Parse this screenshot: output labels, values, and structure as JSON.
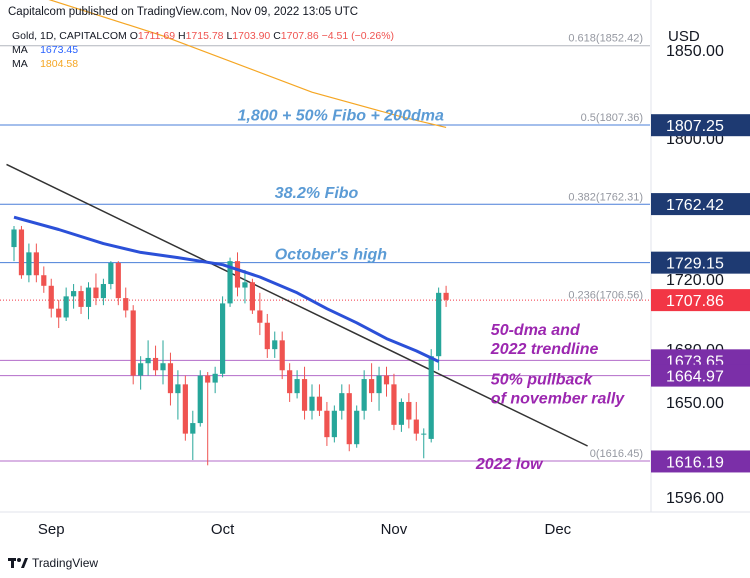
{
  "header": {
    "published": "Capitalcom published on TradingView.com, Nov 09, 2022 13:05 UTC"
  },
  "symbol": {
    "name": "Gold, 1D, CAPITALCOM",
    "o_label": "O",
    "o": "1711.69",
    "h_label": "H",
    "h": "1715.78",
    "l_label": "L",
    "l": "1703.90",
    "c_label": "C",
    "c": "1707.86",
    "change": "−4.51 (−0.26%)"
  },
  "indicators": [
    {
      "label": "MA",
      "value": "1673.45",
      "color": "#2962ff"
    },
    {
      "label": "MA",
      "value": "1804.58",
      "color": "#f5a623"
    }
  ],
  "currency": "USD",
  "footer": {
    "brand": "TradingView"
  },
  "chart_data": {
    "type": "candlestick",
    "y_ticks": [
      "1850.00",
      "1800.00",
      "1720.00",
      "1680.00",
      "1650.00",
      "1596.00"
    ],
    "x_ticks": [
      {
        "label": "Sep",
        "index": 5
      },
      {
        "label": "Oct",
        "index": 28
      },
      {
        "label": "Nov",
        "index": 51
      },
      {
        "label": "Dec",
        "index": 73
      }
    ],
    "ohlc": [
      [
        1738,
        1750,
        1730,
        1748
      ],
      [
        1748,
        1750,
        1720,
        1722
      ],
      [
        1722,
        1740,
        1718,
        1735
      ],
      [
        1735,
        1740,
        1718,
        1722
      ],
      [
        1722,
        1727,
        1712,
        1716
      ],
      [
        1716,
        1720,
        1698,
        1703
      ],
      [
        1703,
        1708,
        1692,
        1698
      ],
      [
        1698,
        1715,
        1696,
        1710
      ],
      [
        1710,
        1717,
        1703,
        1713
      ],
      [
        1713,
        1716,
        1700,
        1704
      ],
      [
        1704,
        1718,
        1697,
        1715
      ],
      [
        1715,
        1723,
        1705,
        1709
      ],
      [
        1709,
        1720,
        1705,
        1717
      ],
      [
        1717,
        1730,
        1714,
        1729
      ],
      [
        1729,
        1730,
        1705,
        1709
      ],
      [
        1709,
        1715,
        1698,
        1702
      ],
      [
        1702,
        1705,
        1660,
        1665
      ],
      [
        1665,
        1676,
        1657,
        1672
      ],
      [
        1672,
        1685,
        1665,
        1675
      ],
      [
        1675,
        1682,
        1665,
        1668
      ],
      [
        1668,
        1685,
        1660,
        1672
      ],
      [
        1672,
        1678,
        1648,
        1655
      ],
      [
        1655,
        1668,
        1640,
        1660
      ],
      [
        1660,
        1665,
        1628,
        1632
      ],
      [
        1632,
        1645,
        1617,
        1638
      ],
      [
        1638,
        1668,
        1636,
        1665
      ],
      [
        1665,
        1667,
        1614,
        1661
      ],
      [
        1661,
        1670,
        1655,
        1666
      ],
      [
        1666,
        1710,
        1664,
        1706
      ],
      [
        1706,
        1732,
        1704,
        1730
      ],
      [
        1730,
        1735,
        1710,
        1715
      ],
      [
        1715,
        1725,
        1706,
        1718
      ],
      [
        1718,
        1720,
        1700,
        1702
      ],
      [
        1702,
        1712,
        1688,
        1695
      ],
      [
        1695,
        1700,
        1675,
        1680
      ],
      [
        1680,
        1690,
        1675,
        1685
      ],
      [
        1685,
        1690,
        1663,
        1668
      ],
      [
        1668,
        1672,
        1650,
        1655
      ],
      [
        1655,
        1668,
        1652,
        1663
      ],
      [
        1663,
        1670,
        1640,
        1645
      ],
      [
        1645,
        1660,
        1640,
        1653
      ],
      [
        1653,
        1660,
        1642,
        1645
      ],
      [
        1645,
        1650,
        1625,
        1630
      ],
      [
        1630,
        1648,
        1627,
        1645
      ],
      [
        1645,
        1660,
        1640,
        1655
      ],
      [
        1655,
        1660,
        1622,
        1626
      ],
      [
        1626,
        1648,
        1624,
        1645
      ],
      [
        1645,
        1668,
        1640,
        1663
      ],
      [
        1663,
        1672,
        1650,
        1655
      ],
      [
        1655,
        1670,
        1645,
        1665
      ],
      [
        1665,
        1670,
        1653,
        1660
      ],
      [
        1660,
        1666,
        1634,
        1637
      ],
      [
        1637,
        1652,
        1633,
        1650
      ],
      [
        1650,
        1655,
        1635,
        1640
      ],
      [
        1640,
        1650,
        1628,
        1632
      ],
      [
        1632,
        1635,
        1618,
        1632
      ],
      [
        1629,
        1680,
        1627,
        1676
      ],
      [
        1676,
        1715,
        1668,
        1712
      ],
      [
        1712,
        1716,
        1704,
        1708
      ]
    ],
    "ma_50": [
      [
        0,
        1755
      ],
      [
        6,
        1748
      ],
      [
        12,
        1740
      ],
      [
        17,
        1735
      ],
      [
        22,
        1732
      ],
      [
        28,
        1728
      ],
      [
        33,
        1721
      ],
      [
        38,
        1712
      ],
      [
        42,
        1703
      ],
      [
        46,
        1695
      ],
      [
        50,
        1686
      ],
      [
        54,
        1679
      ],
      [
        57,
        1673
      ]
    ],
    "ma_200": [
      [
        0,
        1885
      ],
      [
        20,
        1858
      ],
      [
        40,
        1826
      ],
      [
        52,
        1812
      ],
      [
        58,
        1806
      ]
    ],
    "trendline": [
      [
        -1,
        1785
      ],
      [
        77,
        1625
      ]
    ],
    "hlines": [
      {
        "price": 1852.42,
        "color": "#b2b5be"
      },
      {
        "price": 1807.36,
        "color": "#4a7fd8"
      },
      {
        "price": 1762.31,
        "color": "#4a7fd8"
      },
      {
        "price": 1729.15,
        "color": "#4a7fd8"
      },
      {
        "price": 1673.65,
        "color": "#b36bc9"
      },
      {
        "price": 1664.97,
        "color": "#b36bc9"
      },
      {
        "price": 1616.45,
        "color": "#b36bc9"
      }
    ],
    "last_price_line": 1707.86,
    "fib_labels": [
      {
        "text": "0.618(1852.42)",
        "price": 1852.42
      },
      {
        "text": "0.5(1807.36)",
        "price": 1807.36
      },
      {
        "text": "0.382(1762.31)",
        "price": 1762.31
      },
      {
        "text": "0.236(1706.56)",
        "price": 1706.56
      },
      {
        "text": "0(1616.45)",
        "price": 1616.45
      }
    ],
    "price_badges": [
      {
        "text": "1807.25",
        "price": 1807.25,
        "bg": "#1e3a72",
        "fg": "#ffffff"
      },
      {
        "text": "1762.42",
        "price": 1762.42,
        "bg": "#1e3a72",
        "fg": "#ffffff"
      },
      {
        "text": "1729.15",
        "price": 1729.15,
        "bg": "#1e3a72",
        "fg": "#ffffff"
      },
      {
        "text": "1707.86",
        "price": 1707.86,
        "bg": "#f23645",
        "fg": "#ffffff"
      },
      {
        "text": "1673.65",
        "price": 1673.65,
        "bg": "#7b2fa8",
        "fg": "#ffffff"
      },
      {
        "text": "1664.97",
        "price": 1664.97,
        "bg": "#7b2fa8",
        "fg": "#ffffff"
      },
      {
        "text": "1616.19",
        "price": 1616.19,
        "bg": "#7b2fa8",
        "fg": "#ffffff"
      }
    ],
    "annotations": [
      {
        "lines": [
          "1,800 + 50% Fibo + 200dma"
        ],
        "price": 1810,
        "index": 30,
        "color": "#5b9bd5"
      },
      {
        "lines": [
          "38.2% Fibo"
        ],
        "price": 1766,
        "index": 35,
        "color": "#5b9bd5"
      },
      {
        "lines": [
          "October's high"
        ],
        "price": 1731,
        "index": 35,
        "color": "#5b9bd5"
      },
      {
        "lines": [
          "50-dma and",
          "2022 trendline"
        ],
        "price": 1688,
        "index": 64,
        "color": "#9c27b0"
      },
      {
        "lines": [
          "50% pullback",
          "of november rally"
        ],
        "price": 1660,
        "index": 64,
        "color": "#9c27b0"
      },
      {
        "lines": [
          "2022 low"
        ],
        "price": 1612,
        "index": 62,
        "color": "#9c27b0"
      }
    ],
    "colors": {
      "up": "#26a69a",
      "down": "#ef5350",
      "ma_50": "#2b50d8",
      "ma_200": "#f5a623",
      "trendline": "#333333"
    }
  }
}
